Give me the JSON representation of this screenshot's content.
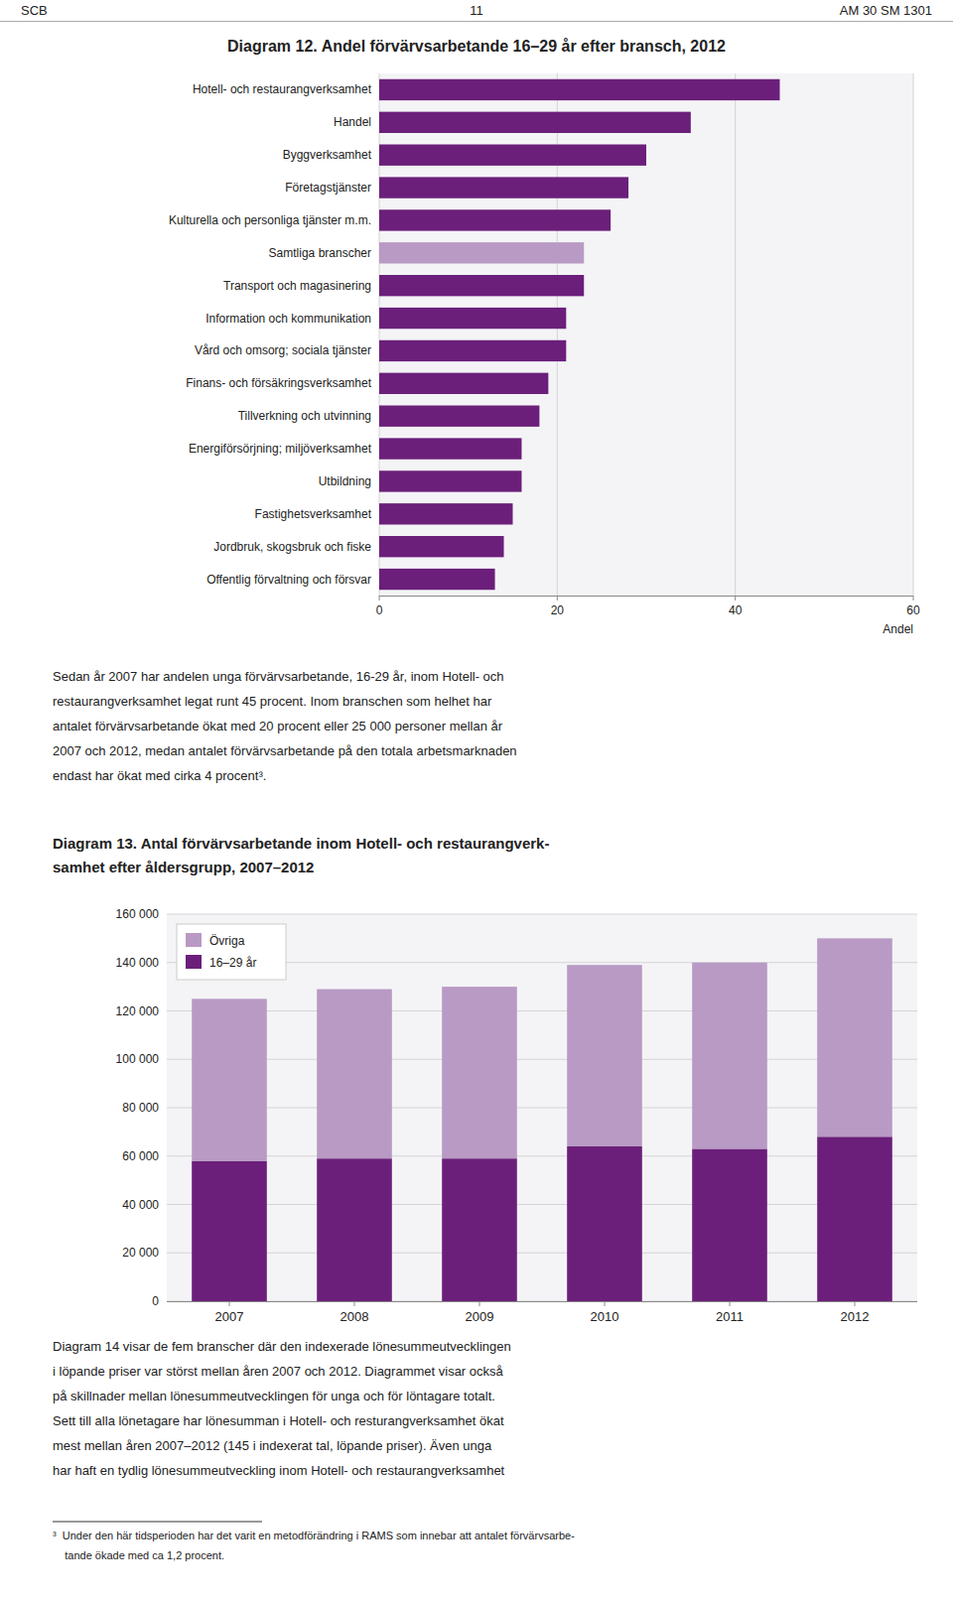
{
  "header": [
    "SCB",
    "11",
    "AM 30 SM 1301"
  ],
  "chart_data": [
    {
      "type": "bar",
      "orientation": "horizontal",
      "title": "Diagram 12. Andel förvärvsarbetande 16–29 år efter bransch, 2012",
      "categories": [
        "Hotell- och restaurangverksamhet",
        "Handel",
        "Byggverksamhet",
        "Företagstjänster",
        "Kulturella och personliga tjänster m.m.",
        "Samtliga branscher",
        "Transport och magasinering",
        "Information och kommunikation",
        "Vård och omsorg; sociala tjänster",
        "Finans- och försäkringsverksamhet",
        "Tillverkning och utvinning",
        "Energiförsörjning; miljöverksamhet",
        "Utbildning",
        "Fastighetsverksamhet",
        "Jordbruk, skogsbruk och fiske",
        "Offentlig förvaltning och försvar"
      ],
      "values": [
        45,
        35,
        30,
        28,
        26,
        23,
        23,
        21,
        21,
        19,
        18,
        16,
        16,
        15,
        14,
        13
      ],
      "colors": [
        "#6B1F7A",
        "#6B1F7A",
        "#6B1F7A",
        "#6B1F7A",
        "#6B1F7A",
        "#B89AC4",
        "#6B1F7A",
        "#6B1F7A",
        "#6B1F7A",
        "#6B1F7A",
        "#6B1F7A",
        "#6B1F7A",
        "#6B1F7A",
        "#6B1F7A",
        "#6B1F7A",
        "#6B1F7A"
      ],
      "xlabel": "Andel",
      "xlim": [
        0,
        60
      ],
      "xticks": [
        0,
        20,
        40,
        60
      ],
      "grid": true
    },
    {
      "type": "bar",
      "stacked": true,
      "title": [
        "Diagram 13. Antal förvärvsarbetande inom Hotell- och restaurangverk-",
        "samhet efter åldersgrupp, 2007–2012"
      ],
      "categories": [
        "2007",
        "2008",
        "2009",
        "2010",
        "2011",
        "2012"
      ],
      "series": [
        {
          "name": "16–29 år",
          "color": "#6B1F7A",
          "values": [
            58000,
            59000,
            59000,
            64000,
            63000,
            68000
          ]
        },
        {
          "name": "Övriga",
          "color": "#B89AC4",
          "values": [
            67000,
            70000,
            71000,
            75000,
            77000,
            82000
          ]
        }
      ],
      "ylim": [
        0,
        160000
      ],
      "yticks": [
        0,
        {
          "value": 20000,
          "label": "20 000"
        },
        {
          "value": 40000,
          "label": "40 000"
        },
        {
          "value": 60000,
          "label": "60 000"
        },
        {
          "value": 80000,
          "label": "80 000"
        },
        {
          "value": 100000,
          "label": "100 000"
        },
        {
          "value": 120000,
          "label": "120 000"
        },
        {
          "value": 140000,
          "label": "140 000"
        },
        {
          "value": 160000,
          "label": "160 000"
        }
      ],
      "grid": true,
      "legend": "upper left"
    }
  ],
  "paragraphs": [
    [
      "Sedan år 2007 har andelen unga förvärvsarbetande, 16-29 år, inom Hotell- och",
      "restaurangverksamhet legat runt 45 procent. Inom branschen som helhet har",
      "antalet förvärvsarbetande ökat med 20 procent eller 25 000 personer mellan år",
      "2007 och 2012, medan antalet förvärvsarbetande på den totala arbetsmarknaden",
      "endast har ökat med cirka 4 procent³."
    ],
    [
      "Diagram 14 visar de fem branscher där den indexerade lönesummeutvecklingen",
      "i löpande priser var störst mellan åren 2007 och 2012. Diagrammet visar också",
      "på skillnader mellan lönesummeutvecklingen för unga och för löntagare totalt.",
      "Sett till alla lönetagare har lönesumman i Hotell- och resturangverksamhet ökat",
      "mest mellan åren 2007–2012 (145 i indexerat tal, löpande priser). Även unga",
      "har haft en tydlig lönesummeutveckling inom Hotell- och restaurangverksamhet"
    ]
  ],
  "footnote": [
    "³  Under den här tidsperioden har det varit en metodförändring i RAMS som innebar att antalet förvärvsarbe-",
    "    tande ökade med ca 1,2 procent."
  ]
}
